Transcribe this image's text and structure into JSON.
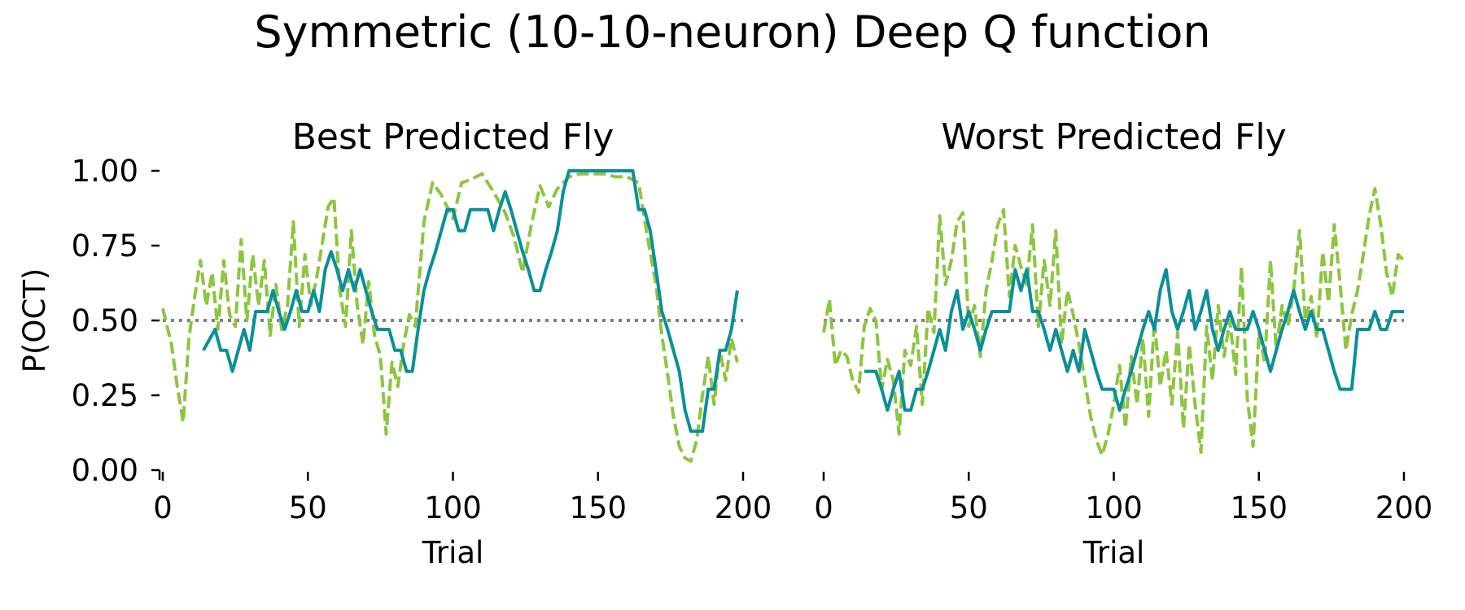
{
  "suptitle": "Symmetric (10-10-neuron) Deep Q function",
  "colors": {
    "fly": "#0a8f98",
    "model": "#8cc63f",
    "chance": "#808080"
  },
  "chart_data": [
    {
      "type": "line",
      "title": "Best Predicted Fly",
      "xlabel": "Trial",
      "ylabel": "P(OCT)",
      "xlim": [
        0,
        200
      ],
      "ylim": [
        0,
        1
      ],
      "xticks": [
        "0",
        "50",
        "100",
        "150",
        "200"
      ],
      "yticks": [
        "0.00",
        "0.25",
        "0.50",
        "0.75",
        "1.00"
      ],
      "chance_level": 0.5,
      "series": [
        {
          "name": "model",
          "style": "dashed",
          "x": [
            0,
            3,
            5,
            7,
            9,
            11,
            13,
            15,
            17,
            19,
            21,
            23,
            25,
            27,
            29,
            31,
            33,
            35,
            37,
            39,
            41,
            43,
            45,
            47,
            49,
            51,
            53,
            55,
            57,
            59,
            61,
            63,
            65,
            67,
            69,
            71,
            73,
            75,
            77,
            79,
            81,
            83,
            85,
            87,
            90,
            93,
            96,
            100,
            103,
            106,
            110,
            114,
            118,
            121,
            124,
            127,
            130,
            133,
            136,
            140,
            144,
            148,
            152,
            156,
            160,
            164,
            167,
            170,
            172,
            174,
            176,
            178,
            180,
            182,
            184,
            186,
            188,
            190,
            192,
            194,
            196,
            198
          ],
          "y": [
            0.54,
            0.42,
            0.28,
            0.16,
            0.44,
            0.58,
            0.7,
            0.55,
            0.66,
            0.47,
            0.7,
            0.52,
            0.48,
            0.77,
            0.5,
            0.72,
            0.55,
            0.7,
            0.45,
            0.62,
            0.47,
            0.55,
            0.83,
            0.48,
            0.72,
            0.55,
            0.64,
            0.76,
            0.88,
            0.91,
            0.6,
            0.48,
            0.8,
            0.55,
            0.42,
            0.63,
            0.45,
            0.38,
            0.12,
            0.36,
            0.28,
            0.42,
            0.52,
            0.48,
            0.83,
            0.96,
            0.92,
            0.84,
            0.96,
            0.97,
            0.99,
            0.93,
            0.86,
            0.78,
            0.66,
            0.82,
            0.95,
            0.88,
            0.94,
            0.98,
            0.99,
            0.99,
            0.99,
            0.98,
            0.98,
            0.96,
            0.78,
            0.62,
            0.45,
            0.32,
            0.18,
            0.08,
            0.04,
            0.03,
            0.1,
            0.25,
            0.38,
            0.22,
            0.4,
            0.3,
            0.44,
            0.36
          ]
        },
        {
          "name": "fly",
          "style": "solid",
          "x": [
            14,
            18,
            20,
            22,
            24,
            26,
            28,
            30,
            32,
            34,
            36,
            38,
            40,
            42,
            44,
            46,
            48,
            50,
            52,
            54,
            56,
            58,
            60,
            62,
            64,
            66,
            68,
            70,
            72,
            74,
            76,
            78,
            80,
            82,
            84,
            86,
            88,
            90,
            92,
            94,
            96,
            98,
            100,
            102,
            104,
            106,
            108,
            110,
            112,
            114,
            116,
            118,
            120,
            122,
            124,
            126,
            128,
            130,
            132,
            134,
            136,
            138,
            140,
            142,
            144,
            146,
            148,
            150,
            152,
            154,
            156,
            158,
            160,
            162,
            164,
            166,
            168,
            170,
            172,
            174,
            176,
            178,
            180,
            182,
            184,
            186,
            188,
            190,
            192,
            194,
            196,
            198
          ],
          "y": [
            0.4,
            0.47,
            0.4,
            0.4,
            0.33,
            0.4,
            0.47,
            0.4,
            0.53,
            0.53,
            0.53,
            0.6,
            0.53,
            0.47,
            0.53,
            0.6,
            0.53,
            0.53,
            0.6,
            0.53,
            0.67,
            0.73,
            0.67,
            0.6,
            0.67,
            0.6,
            0.67,
            0.6,
            0.53,
            0.47,
            0.47,
            0.47,
            0.4,
            0.4,
            0.33,
            0.33,
            0.47,
            0.6,
            0.67,
            0.73,
            0.8,
            0.87,
            0.87,
            0.8,
            0.8,
            0.87,
            0.87,
            0.87,
            0.87,
            0.8,
            0.87,
            0.93,
            0.87,
            0.8,
            0.73,
            0.67,
            0.6,
            0.6,
            0.67,
            0.73,
            0.8,
            0.93,
            1.0,
            1.0,
            1.0,
            1.0,
            1.0,
            1.0,
            1.0,
            1.0,
            1.0,
            1.0,
            1.0,
            1.0,
            0.87,
            0.87,
            0.8,
            0.67,
            0.53,
            0.47,
            0.4,
            0.33,
            0.2,
            0.13,
            0.13,
            0.13,
            0.27,
            0.27,
            0.4,
            0.4,
            0.47,
            0.6
          ]
        }
      ]
    },
    {
      "type": "line",
      "title": "Worst Predicted Fly",
      "xlabel": "Trial",
      "ylabel": "",
      "xlim": [
        0,
        200
      ],
      "ylim": [
        0,
        1
      ],
      "xticks": [
        "0",
        "50",
        "100",
        "150",
        "200"
      ],
      "yticks": [],
      "chance_level": 0.5,
      "series": [
        {
          "name": "model",
          "style": "dashed",
          "x": [
            0,
            2,
            4,
            6,
            8,
            10,
            12,
            14,
            16,
            18,
            20,
            22,
            24,
            26,
            28,
            30,
            32,
            34,
            36,
            38,
            40,
            42,
            44,
            46,
            48,
            50,
            52,
            54,
            56,
            58,
            60,
            62,
            64,
            66,
            68,
            70,
            72,
            74,
            76,
            78,
            80,
            82,
            84,
            86,
            88,
            90,
            92,
            94,
            96,
            98,
            100,
            102,
            104,
            106,
            108,
            110,
            112,
            114,
            116,
            118,
            120,
            122,
            124,
            126,
            128,
            130,
            132,
            134,
            136,
            138,
            140,
            142,
            144,
            146,
            148,
            150,
            152,
            154,
            156,
            158,
            160,
            162,
            164,
            166,
            168,
            170,
            172,
            174,
            176,
            178,
            180,
            182,
            184,
            186,
            188,
            190,
            192,
            194,
            196,
            198,
            200
          ],
          "y": [
            0.46,
            0.57,
            0.35,
            0.4,
            0.38,
            0.3,
            0.26,
            0.48,
            0.54,
            0.5,
            0.27,
            0.37,
            0.3,
            0.12,
            0.4,
            0.35,
            0.48,
            0.22,
            0.54,
            0.46,
            0.85,
            0.62,
            0.7,
            0.83,
            0.86,
            0.48,
            0.55,
            0.38,
            0.6,
            0.7,
            0.82,
            0.87,
            0.58,
            0.75,
            0.68,
            0.62,
            0.82,
            0.48,
            0.7,
            0.55,
            0.8,
            0.42,
            0.6,
            0.52,
            0.42,
            0.3,
            0.18,
            0.1,
            0.05,
            0.12,
            0.22,
            0.35,
            0.14,
            0.38,
            0.22,
            0.44,
            0.18,
            0.5,
            0.28,
            0.4,
            0.22,
            0.46,
            0.14,
            0.42,
            0.22,
            0.06,
            0.48,
            0.3,
            0.55,
            0.38,
            0.5,
            0.32,
            0.68,
            0.24,
            0.08,
            0.46,
            0.36,
            0.7,
            0.4,
            0.55,
            0.48,
            0.6,
            0.8,
            0.5,
            0.58,
            0.44,
            0.73,
            0.56,
            0.82,
            0.62,
            0.4,
            0.52,
            0.6,
            0.72,
            0.85,
            0.94,
            0.82,
            0.66,
            0.58,
            0.72,
            0.7
          ]
        },
        {
          "name": "fly",
          "style": "solid",
          "x": [
            14,
            18,
            20,
            22,
            24,
            26,
            28,
            30,
            32,
            34,
            36,
            38,
            40,
            42,
            44,
            46,
            48,
            50,
            52,
            54,
            56,
            58,
            60,
            62,
            64,
            66,
            68,
            70,
            72,
            74,
            76,
            78,
            80,
            82,
            84,
            86,
            88,
            90,
            92,
            94,
            96,
            98,
            100,
            102,
            104,
            106,
            108,
            110,
            112,
            114,
            116,
            118,
            120,
            122,
            124,
            126,
            128,
            130,
            132,
            134,
            136,
            138,
            140,
            142,
            144,
            146,
            148,
            150,
            152,
            154,
            156,
            158,
            160,
            162,
            164,
            166,
            168,
            170,
            172,
            174,
            176,
            178,
            180,
            182,
            184,
            186,
            188,
            190,
            192,
            194,
            196,
            198,
            200
          ],
          "y": [
            0.33,
            0.33,
            0.27,
            0.2,
            0.27,
            0.33,
            0.2,
            0.2,
            0.27,
            0.27,
            0.33,
            0.4,
            0.47,
            0.4,
            0.53,
            0.6,
            0.47,
            0.53,
            0.47,
            0.4,
            0.47,
            0.53,
            0.53,
            0.53,
            0.53,
            0.67,
            0.6,
            0.67,
            0.53,
            0.53,
            0.47,
            0.4,
            0.47,
            0.4,
            0.33,
            0.4,
            0.33,
            0.47,
            0.4,
            0.33,
            0.27,
            0.27,
            0.27,
            0.2,
            0.27,
            0.33,
            0.4,
            0.47,
            0.53,
            0.47,
            0.6,
            0.67,
            0.53,
            0.47,
            0.53,
            0.6,
            0.47,
            0.53,
            0.6,
            0.47,
            0.4,
            0.47,
            0.53,
            0.47,
            0.47,
            0.47,
            0.53,
            0.47,
            0.4,
            0.33,
            0.4,
            0.47,
            0.53,
            0.6,
            0.53,
            0.47,
            0.53,
            0.47,
            0.47,
            0.4,
            0.33,
            0.27,
            0.27,
            0.27,
            0.47,
            0.47,
            0.47,
            0.53,
            0.47,
            0.47,
            0.53,
            0.53,
            0.53
          ]
        }
      ]
    }
  ]
}
